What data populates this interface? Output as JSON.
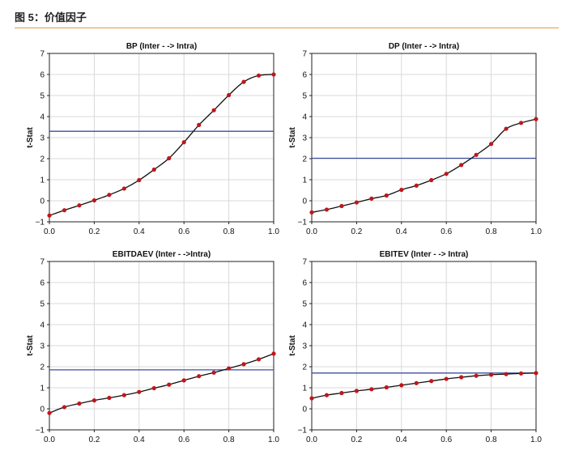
{
  "figure": {
    "title": "图 5：价值因子"
  },
  "chart_data": [
    {
      "type": "line",
      "title": "BP (Inter - -> Intra)",
      "ylabel": "t-Stat",
      "xlim": [
        0,
        1
      ],
      "ylim": [
        -1,
        7
      ],
      "xticks": [
        "0.0",
        "0.2",
        "0.4",
        "0.6",
        "0.8",
        "1.0"
      ],
      "yticks": [
        "−1",
        "0",
        "1",
        "2",
        "3",
        "4",
        "5",
        "6",
        "7"
      ],
      "grid": true,
      "reference_line": 3.3,
      "series": [
        {
          "x": [
            0,
            0.0667,
            0.1333,
            0.2,
            0.2667,
            0.3333,
            0.4,
            0.4667,
            0.5333,
            0.6,
            0.6667,
            0.7333,
            0.8,
            0.8667,
            0.9333,
            1.0
          ],
          "y": [
            -0.7,
            -0.45,
            -0.22,
            0.02,
            0.28,
            0.58,
            0.98,
            1.48,
            2.02,
            2.78,
            3.6,
            4.3,
            5.02,
            5.65,
            5.95,
            6.0
          ]
        }
      ]
    },
    {
      "type": "line",
      "title": "DP (Inter - -> Intra)",
      "ylabel": "t-Stat",
      "xlim": [
        0,
        1
      ],
      "ylim": [
        -1,
        7
      ],
      "xticks": [
        "0.0",
        "0.2",
        "0.4",
        "0.6",
        "0.8",
        "1.0"
      ],
      "yticks": [
        "−1",
        "0",
        "1",
        "2",
        "3",
        "4",
        "5",
        "6",
        "7"
      ],
      "grid": true,
      "reference_line": 2.02,
      "series": [
        {
          "x": [
            0,
            0.0667,
            0.1333,
            0.2,
            0.2667,
            0.3333,
            0.4,
            0.4667,
            0.5333,
            0.6,
            0.6667,
            0.7333,
            0.8,
            0.8667,
            0.9333,
            1.0
          ],
          "y": [
            -0.55,
            -0.42,
            -0.25,
            -0.08,
            0.1,
            0.25,
            0.52,
            0.72,
            0.98,
            1.28,
            1.7,
            2.18,
            2.7,
            3.42,
            3.7,
            3.88
          ]
        }
      ]
    },
    {
      "type": "line",
      "title": "EBITDAEV (Inter - ->Intra)",
      "ylabel": "t-Stat",
      "xlim": [
        0,
        1
      ],
      "ylim": [
        -1,
        7
      ],
      "xticks": [
        "0.0",
        "0.2",
        "0.4",
        "0.6",
        "0.8",
        "1.0"
      ],
      "yticks": [
        "−1",
        "0",
        "1",
        "2",
        "3",
        "4",
        "5",
        "6",
        "7"
      ],
      "grid": true,
      "reference_line": 1.85,
      "series": [
        {
          "x": [
            0,
            0.0667,
            0.1333,
            0.2,
            0.2667,
            0.3333,
            0.4,
            0.4667,
            0.5333,
            0.6,
            0.6667,
            0.7333,
            0.8,
            0.8667,
            0.9333,
            1.0
          ],
          "y": [
            -0.2,
            0.08,
            0.25,
            0.4,
            0.52,
            0.65,
            0.8,
            0.98,
            1.15,
            1.35,
            1.55,
            1.72,
            1.92,
            2.12,
            2.35,
            2.62
          ]
        }
      ]
    },
    {
      "type": "line",
      "title": "EBITEV (Inter - -> Intra)",
      "ylabel": "t-Stat",
      "xlim": [
        0,
        1
      ],
      "ylim": [
        -1,
        7
      ],
      "xticks": [
        "0.0",
        "0.2",
        "0.4",
        "0.6",
        "0.8",
        "1.0"
      ],
      "yticks": [
        "−1",
        "0",
        "1",
        "2",
        "3",
        "4",
        "5",
        "6",
        "7"
      ],
      "grid": true,
      "reference_line": 1.7,
      "series": [
        {
          "x": [
            0,
            0.0667,
            0.1333,
            0.2,
            0.2667,
            0.3333,
            0.4,
            0.4667,
            0.5333,
            0.6,
            0.6667,
            0.7333,
            0.8,
            0.8667,
            0.9333,
            1.0
          ],
          "y": [
            0.5,
            0.65,
            0.75,
            0.85,
            0.93,
            1.02,
            1.12,
            1.22,
            1.32,
            1.42,
            1.5,
            1.57,
            1.62,
            1.65,
            1.68,
            1.7
          ]
        }
      ]
    }
  ],
  "colors": {
    "curve": "#111111",
    "points": "#c0161c",
    "reference": "#3b4fa0",
    "grid": "#d9d9d9",
    "rule": "#e39a4a"
  }
}
